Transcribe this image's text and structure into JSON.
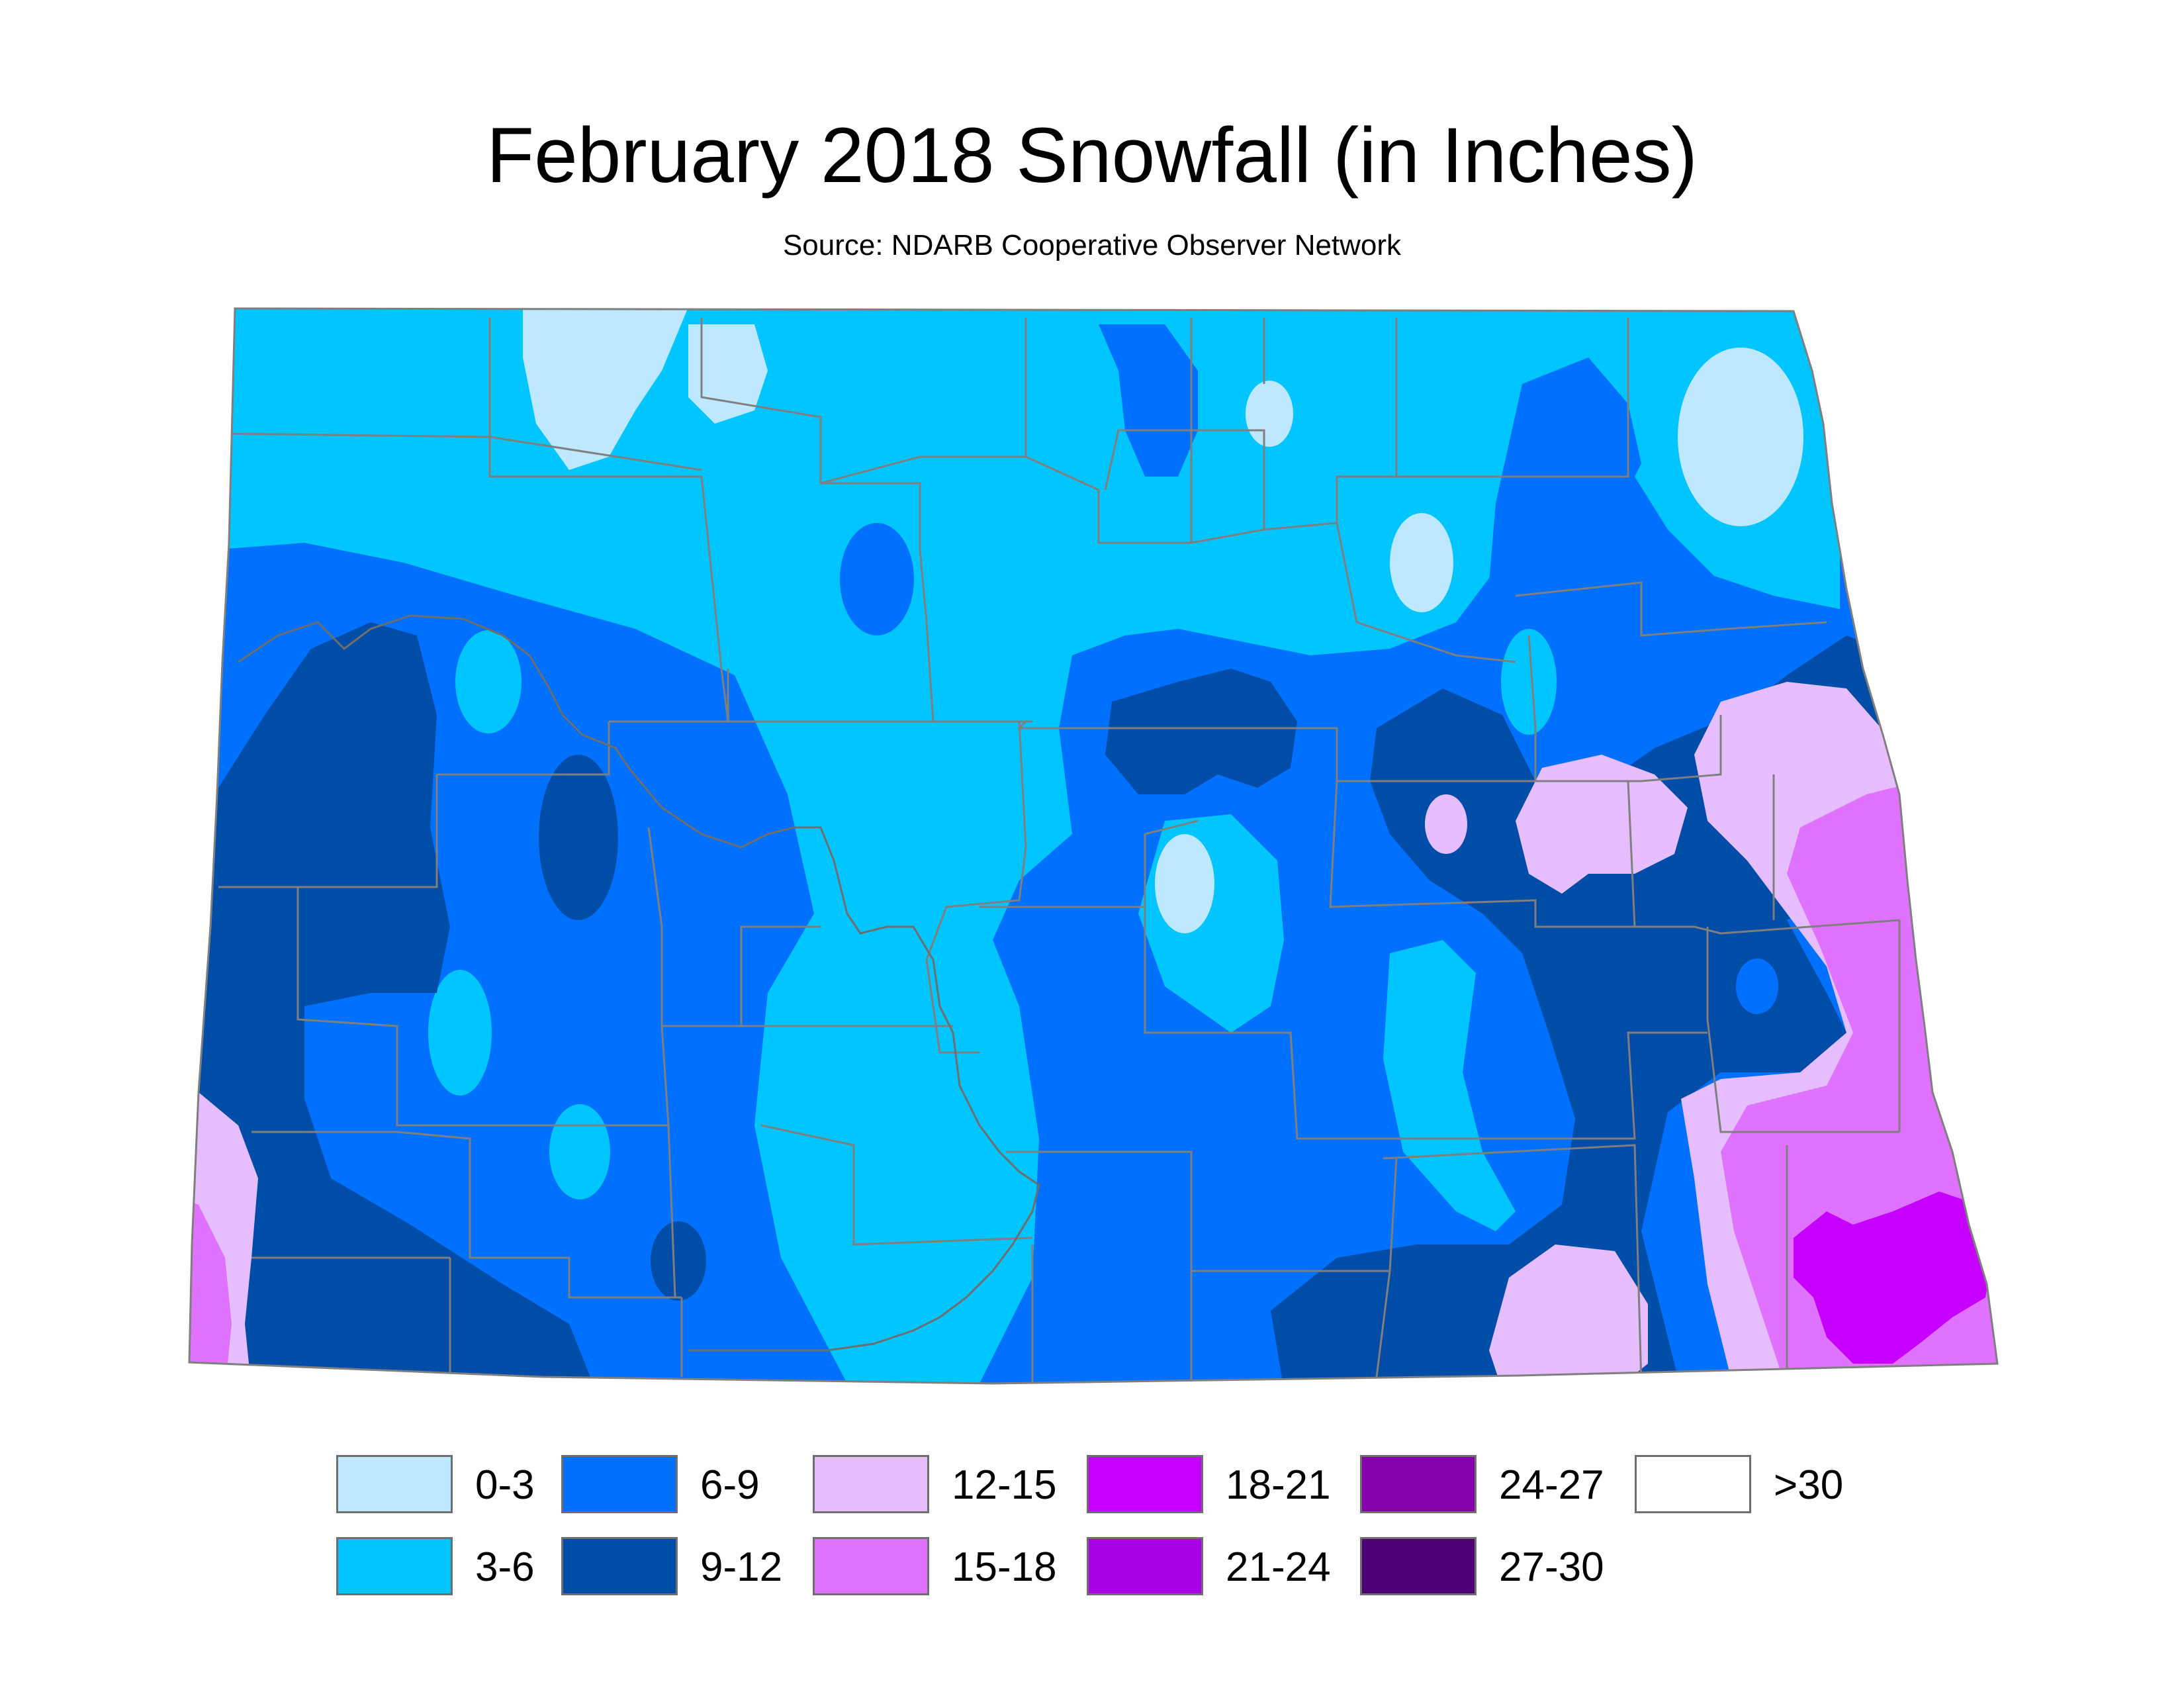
{
  "title": "February 2018 Snowfall (in Inches)",
  "subtitle": "Source: NDARB Cooperative Observer Network",
  "legend": [
    {
      "label": "0-3",
      "color": "#bee8ff"
    },
    {
      "label": "3-6",
      "color": "#00c5ff"
    },
    {
      "label": "6-9",
      "color": "#0070ff"
    },
    {
      "label": "9-12",
      "color": "#004da8"
    },
    {
      "label": "12-15",
      "color": "#e6beff"
    },
    {
      "label": "15-18",
      "color": "#df73ff"
    },
    {
      "label": "18-21",
      "color": "#c500ff"
    },
    {
      "label": "21-24",
      "color": "#a900e6"
    },
    {
      "label": "24-27",
      "color": "#8400a8"
    },
    {
      "label": "27-30",
      "color": "#4c0073"
    },
    {
      "label": ">30",
      "color": "#ffffff"
    }
  ],
  "colors": {
    "county_lines": "#7f7f7f",
    "river": "#6e6e6e"
  }
}
